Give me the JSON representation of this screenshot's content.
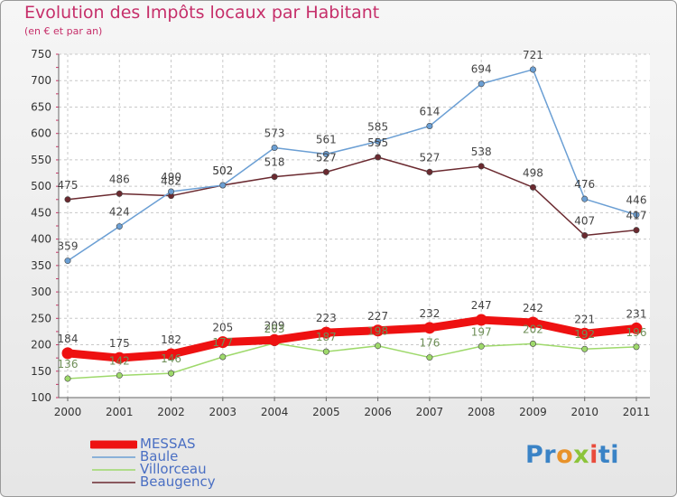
{
  "header": {
    "title": "Evolution des Impôts locaux par Habitant",
    "subtitle": "(en € et par an)"
  },
  "brand": {
    "parts": [
      "Pr",
      "o",
      "x",
      "i",
      "ti"
    ]
  },
  "chart_data": {
    "type": "line",
    "title": "Evolution des Impôts locaux par Habitant",
    "subtitle": "(en € et par an)",
    "ylim": [
      100,
      750
    ],
    "y_ticks": [
      100,
      150,
      200,
      250,
      300,
      350,
      400,
      450,
      500,
      550,
      600,
      650,
      700,
      750
    ],
    "x": [
      "2000",
      "2001",
      "2002",
      "2003",
      "2004",
      "2005",
      "2006",
      "2007",
      "2008",
      "2009",
      "2010",
      "2011"
    ],
    "series": [
      {
        "name": "MESSAS",
        "color": "#ee1111",
        "values": [
          184,
          175,
          182,
          205,
          209,
          223,
          227,
          232,
          247,
          242,
          221,
          231
        ]
      },
      {
        "name": "Baule",
        "color": "#6b9fd4",
        "values": [
          359,
          424,
          490,
          502,
          573,
          561,
          585,
          614,
          694,
          721,
          476,
          446
        ]
      },
      {
        "name": "Villorceau",
        "color": "#9ed96b",
        "values": [
          136,
          142,
          146,
          177,
          203,
          187,
          198,
          176,
          197,
          202,
          192,
          196
        ]
      },
      {
        "name": "Beaugency",
        "color": "#6b2a30",
        "values": [
          475,
          486,
          482,
          502,
          518,
          527,
          555,
          527,
          538,
          498,
          407,
          417
        ]
      }
    ]
  }
}
